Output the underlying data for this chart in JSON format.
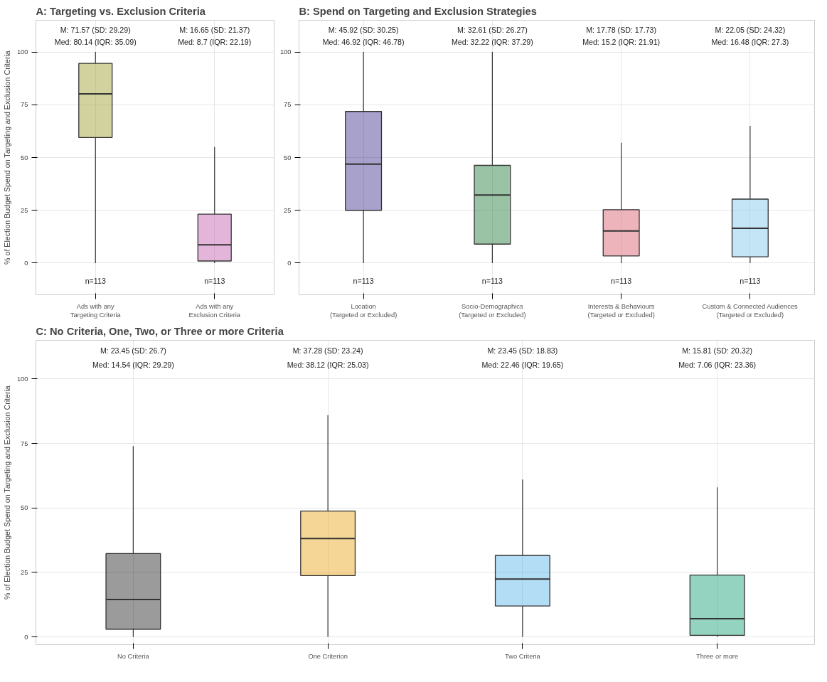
{
  "chart_data": [
    {
      "type": "box",
      "title": "A: Targeting vs. Exclusion Criteria",
      "ylabel": "% of Election Budget Spend on Targeting and Exclusion Criteria",
      "categories": [
        "Ads with any\nTargeting Criteria",
        "Ads with any\nExclusion Criteria"
      ],
      "colors": [
        "#9b9b2a",
        "#c25bb0"
      ],
      "boxes": [
        {
          "low": 0,
          "q1": 59.5,
          "median": 80.14,
          "q3": 94.6,
          "high": 100
        },
        {
          "low": 0,
          "q1": 1,
          "median": 8.7,
          "q3": 23.2,
          "high": 55
        }
      ],
      "ylim": [
        -15,
        115
      ],
      "yticks": [
        0,
        25,
        50,
        75,
        100
      ],
      "grid": true,
      "annotations": [
        "M: 71.57 (SD: 29.29)",
        "Med: 80.14 (IQR: 35.09)",
        "n=113",
        "M: 16.65 (SD: 21.37)",
        "Med: 8.7 (IQR: 22.19)",
        "n=113"
      ]
    },
    {
      "type": "box",
      "title": "B: Spend on Targeting and Exclusion Strategies",
      "categories": [
        "Location\n(Targeted or Excluded)",
        "Socio-Demographics\n(Targeted or Excluded)",
        "Interests & Behaviours\n(Targeted or Excluded)",
        "Custom & Connected Audiences\n(Targeted or Excluded)"
      ],
      "colors": [
        "#3f2e8f",
        "#1f7a3a",
        "#d9596a",
        "#7ac6ec"
      ],
      "boxes": [
        {
          "low": 0,
          "q1": 25,
          "median": 46.92,
          "q3": 71.8,
          "high": 100
        },
        {
          "low": 0,
          "q1": 9,
          "median": 32.22,
          "q3": 46.3,
          "high": 100
        },
        {
          "low": 0,
          "q1": 3.4,
          "median": 15.2,
          "q3": 25.3,
          "high": 57
        },
        {
          "low": 0,
          "q1": 3,
          "median": 16.48,
          "q3": 30.3,
          "high": 65
        }
      ],
      "ylim": [
        -15,
        115
      ],
      "yticks": [
        0,
        25,
        50,
        75,
        100
      ],
      "grid": true,
      "annotations": [
        "M: 45.92 (SD: 30.25)",
        "Med: 46.92 (IQR: 46.78)",
        "n=113",
        "M: 32.61 (SD: 26.27)",
        "Med: 32.22 (IQR: 37.29)",
        "n=113",
        "M: 17.78 (SD: 17.73)",
        "Med: 15.2 (IQR: 21.91)",
        "n=113",
        "M: 22.05 (SD: 24.32)",
        "Med: 16.48 (IQR: 27.3)",
        "n=113"
      ]
    },
    {
      "type": "box",
      "title": "C: No Criteria, One, Two, or Three or more Criteria",
      "ylabel": "% of Election Budget Spend on Targeting and Exclusion Criteria",
      "categories": [
        "No Criteria",
        "One Criterion",
        "Two Criteria",
        "Three or more"
      ],
      "colors": [
        "#222222",
        "#e8a317",
        "#56b4e9",
        "#129e73"
      ],
      "boxes": [
        {
          "low": 0,
          "q1": 3,
          "median": 14.54,
          "q3": 32.3,
          "high": 74
        },
        {
          "low": 0,
          "q1": 23.8,
          "median": 38.12,
          "q3": 48.8,
          "high": 86
        },
        {
          "low": 0,
          "q1": 12,
          "median": 22.46,
          "q3": 31.6,
          "high": 61
        },
        {
          "low": 0,
          "q1": 0.6,
          "median": 7.06,
          "q3": 24,
          "high": 58
        }
      ],
      "ylim": [
        -3,
        115
      ],
      "yticks": [
        0,
        25,
        50,
        75,
        100
      ],
      "grid": true,
      "annotations": [
        "M: 23.45 (SD: 26.7)",
        "Med: 14.54 (IQR: 29.29)",
        "M: 37.28 (SD: 23.24)",
        "Med: 38.12 (IQR: 25.03)",
        "M: 23.45 (SD: 18.83)",
        "Med: 22.46 (IQR: 19.65)",
        "M: 15.81 (SD: 20.32)",
        "Med: 7.06 (IQR: 23.36)"
      ]
    }
  ]
}
